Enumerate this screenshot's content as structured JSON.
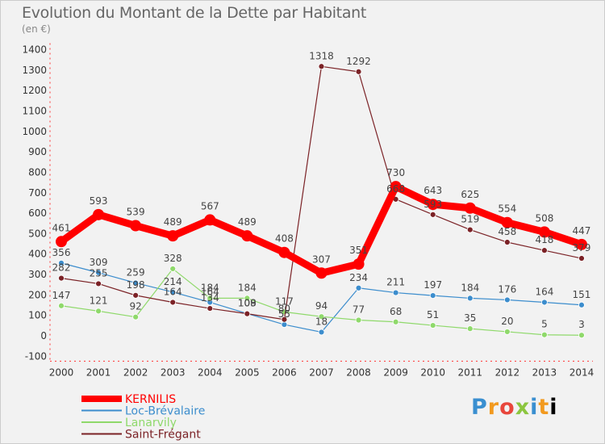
{
  "chart_data": {
    "type": "line",
    "title": "Evolution du Montant de la Dette par Habitant",
    "subtitle": "(en €)",
    "x": [
      "2000",
      "2001",
      "2002",
      "2003",
      "2004",
      "2005",
      "2006",
      "2007",
      "2008",
      "2009",
      "2010",
      "2011",
      "2012",
      "2013",
      "2014"
    ],
    "yticks": [
      "-100",
      "0",
      "100",
      "200",
      "300",
      "400",
      "500",
      "600",
      "700",
      "800",
      "900",
      "1000",
      "1100",
      "1200",
      "1300",
      "1400"
    ],
    "ylim": [
      -100,
      1400
    ],
    "grid": false,
    "legend_placement": "bottom-left",
    "series": [
      {
        "name": "KERNILIS",
        "color": "#ff0000",
        "values": [
          461,
          593,
          539,
          489,
          567,
          489,
          408,
          307,
          351,
          730,
          643,
          625,
          554,
          508,
          447
        ],
        "labels": [
          "461",
          "593",
          "539",
          "489",
          "567",
          "489",
          "408",
          "307",
          "351",
          "730",
          "643",
          "625",
          "554",
          "508",
          "447"
        ]
      },
      {
        "name": "Loc-Brévalaire",
        "color": "#3c8dcd",
        "values": [
          356,
          309,
          259,
          214,
          164,
          109,
          55,
          18,
          234,
          211,
          197,
          184,
          176,
          164,
          151
        ],
        "labels": [
          "356",
          "309",
          "259",
          "214",
          "164",
          "109",
          "55",
          "18",
          "234",
          "211",
          "197",
          "184",
          "176",
          "164",
          "151"
        ]
      },
      {
        "name": "Lanarvily",
        "color": "#8fd96b",
        "values": [
          147,
          121,
          92,
          328,
          184,
          184,
          117,
          94,
          77,
          68,
          51,
          35,
          20,
          5,
          3
        ],
        "labels": [
          "147",
          "121",
          "92",
          "328",
          "184",
          "184",
          "117",
          "94",
          "77",
          "68",
          "51",
          "35",
          "20",
          "5",
          "3"
        ]
      },
      {
        "name": "Saint-Frégant",
        "color": "#7b2226",
        "values": [
          282,
          255,
          198,
          164,
          134,
          108,
          80,
          1318,
          1292,
          668,
          593,
          519,
          458,
          418,
          379
        ],
        "labels": [
          "282",
          "255",
          "198",
          "164",
          "134",
          "108",
          "80",
          "1318",
          "1292",
          "668",
          "593",
          "519",
          "458",
          "418",
          "379"
        ]
      }
    ]
  },
  "branding": {
    "logo_letters": [
      "P",
      "r",
      "o",
      "x",
      "i",
      "t",
      "i"
    ]
  }
}
